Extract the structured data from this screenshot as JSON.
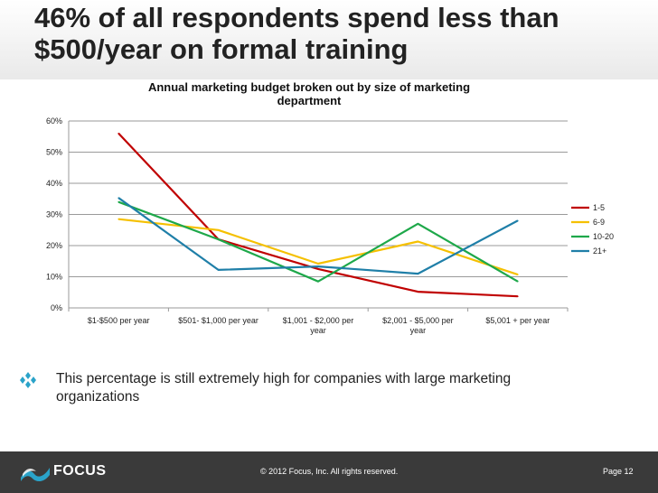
{
  "slide": {
    "title": "46% of all respondents spend less than $500/year on formal training"
  },
  "chart_data": {
    "type": "line",
    "title": "Annual marketing budget broken out by size of marketing department",
    "title_lines": [
      "Annual marketing budget broken out by size of marketing",
      "department"
    ],
    "categories": [
      "$1-$500 per year",
      "$501- $1,000 per year",
      "$1,001 - $2,000 per year",
      "$2,001 - $5,000 per year",
      "$5,001 + per year"
    ],
    "category_lines": [
      [
        "$1-$500 per year"
      ],
      [
        "$501- $1,000 per year"
      ],
      [
        "$1,001 - $2,000 per",
        "year"
      ],
      [
        "$2,001 - $5,000 per",
        "year"
      ],
      [
        "$5,001 + per year"
      ]
    ],
    "ylim": [
      0,
      60
    ],
    "yticks": [
      0,
      10,
      20,
      30,
      40,
      50,
      60
    ],
    "ytick_labels": [
      "0%",
      "10%",
      "20%",
      "30%",
      "40%",
      "50%",
      "60%"
    ],
    "xlabel": "",
    "ylabel": "",
    "grid": true,
    "legend": "right",
    "series": [
      {
        "name": "1-5",
        "color": "#c00000",
        "values": [
          56,
          22,
          12.5,
          5.2,
          3.7
        ]
      },
      {
        "name": "6-9",
        "color": "#f5c000",
        "values": [
          28.5,
          25,
          14.2,
          21.3,
          10.7
        ]
      },
      {
        "name": "10-20",
        "color": "#1ea84a",
        "values": [
          34,
          22,
          8.5,
          27,
          8.5
        ]
      },
      {
        "name": "21+",
        "color": "#1f7fa8",
        "values": [
          35.3,
          12.2,
          13.3,
          11,
          28
        ]
      }
    ]
  },
  "bullet": {
    "icon": "diamond-bullet-icon",
    "text": "This percentage is still extremely high for companies with large marketing organizations"
  },
  "footer": {
    "logo_text": "FOCUS",
    "copyright": "© 2012 Focus, Inc. All rights reserved.",
    "page": "Page 12"
  }
}
